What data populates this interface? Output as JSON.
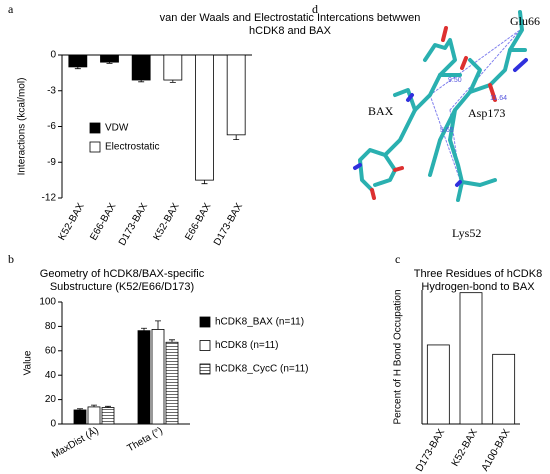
{
  "panel_labels": [
    "a",
    "b",
    "c",
    "d"
  ],
  "molecule_labels": {
    "residues": [
      "Glu66",
      "BAX",
      "Asp173",
      "Lys52"
    ],
    "distances": [
      "9.50",
      "11.64",
      "5.65"
    ]
  },
  "chart_data": [
    {
      "type": "bar",
      "title": [
        "van der Waals and Electrostatic Intercations betwwen",
        "hCDK8 and BAX"
      ],
      "y_label": "Interactions (kcal/mol)",
      "categories": [
        "K52-BAX",
        "E66-BAX",
        "D173-BAX",
        "K52-BAX",
        "E66-BAX",
        "D173-BAX"
      ],
      "series": [
        {
          "name": "VDW",
          "color": "#000000",
          "values": [
            -1.0,
            -0.6,
            -2.1,
            null,
            null,
            null
          ],
          "errors": [
            0.15,
            0.1,
            0.15,
            null,
            null,
            null
          ]
        },
        {
          "name": "Electrostatic",
          "color": "#ffffff",
          "values": [
            null,
            null,
            null,
            -2.1,
            -10.5,
            -6.7
          ],
          "errors": [
            null,
            null,
            null,
            0.2,
            0.3,
            0.4
          ]
        }
      ],
      "ylim": [
        -12,
        0
      ],
      "yticks": [
        0,
        -3,
        -6,
        -9,
        -12
      ],
      "legend": "upper left"
    },
    {
      "type": "bar",
      "title": [
        "Geometry of hCDK8/BAX-specific",
        "Substructure (K52/E66/D173)"
      ],
      "y_label": "Value",
      "categories": [
        "MaxDist (Å)",
        "Theta (°)"
      ],
      "series": [
        {
          "name": "hCDK8_BAX (n=11)",
          "color": "#000000",
          "values": [
            11.5,
            76.5
          ],
          "errors": [
            1,
            2
          ]
        },
        {
          "name": "hCDK8 (n=11)",
          "color": "#ffffff",
          "values": [
            14,
            77.5
          ],
          "errors": [
            1.5,
            7
          ]
        },
        {
          "name": "hCDK8_CycC (n=11)",
          "color": "#ffffff",
          "pattern": "horizontal-lines",
          "values": [
            13.5,
            67
          ],
          "errors": [
            1,
            2
          ]
        }
      ],
      "ylim": [
        0,
        100
      ],
      "yticks": [
        0,
        20,
        40,
        60,
        80,
        100
      ],
      "legend": "right"
    },
    {
      "type": "bar",
      "title": [
        "Three Residues of hCDK8",
        "Hydrogen-bond to BAX"
      ],
      "y_label": "Percent of H Bond Occupation",
      "categories": [
        "D173-BAX",
        "K52-BAX",
        "A100-BAX"
      ],
      "values": [
        59,
        98,
        52
      ],
      "color": "#ffffff",
      "ylim": [
        0,
        100
      ]
    }
  ]
}
